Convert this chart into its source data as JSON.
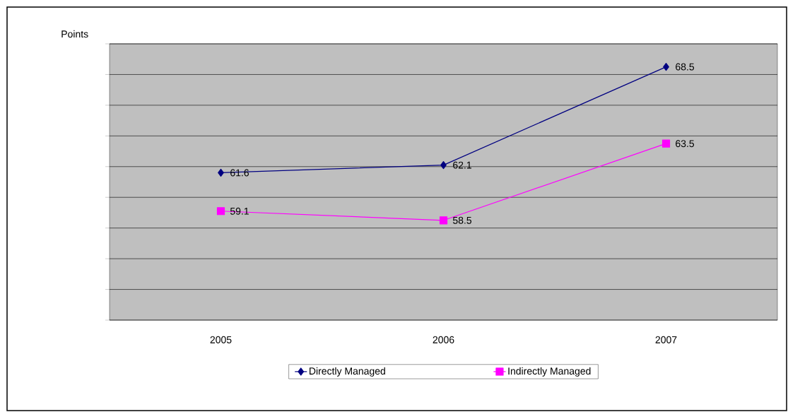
{
  "chart_data": {
    "type": "line",
    "ylabel": "Points",
    "categories": [
      "2005",
      "2006",
      "2007"
    ],
    "series": [
      {
        "name": "Directly Managed",
        "color": "#000080",
        "marker": "diamond",
        "values": [
          61.6,
          62.1,
          68.5
        ]
      },
      {
        "name": "Indirectly Managed",
        "color": "#ff00ff",
        "marker": "square",
        "values": [
          59.1,
          58.5,
          63.5
        ]
      }
    ],
    "ylim": [
      52,
      70
    ],
    "yticks": [
      {
        "value": 52,
        "label": null
      },
      {
        "value": 54,
        "label": null
      },
      {
        "value": 56,
        "label": null
      },
      {
        "value": 58,
        "label": null
      },
      {
        "value": 60,
        "label": null
      },
      {
        "value": 62,
        "label": null
      },
      {
        "value": 64,
        "label": null
      },
      {
        "value": 66,
        "label": null
      },
      {
        "value": 68,
        "label": null
      },
      {
        "value": 70,
        "label": null
      }
    ],
    "tick_labels": "x",
    "grid": "y",
    "legend": "bottom",
    "data_labels": true,
    "line_style": "solid"
  }
}
